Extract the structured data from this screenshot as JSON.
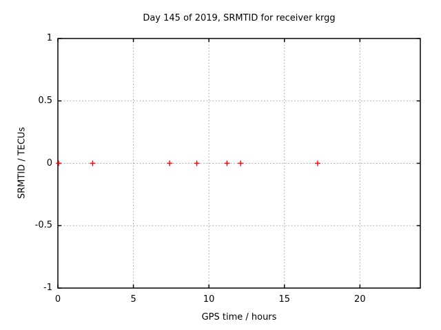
{
  "chart_data": {
    "type": "scatter",
    "title": "Day 145 of 2019, SRMTID for receiver krgg",
    "xlabel": "GPS time / hours",
    "ylabel": "SRMTID / TECUs",
    "xlim": [
      0,
      24
    ],
    "ylim": [
      -1,
      1
    ],
    "xticks": [
      0,
      5,
      10,
      15,
      20
    ],
    "xtick_labels": [
      "0",
      "5",
      "10",
      "15",
      "20"
    ],
    "yticks": [
      -1,
      -0.5,
      0,
      0.5,
      1
    ],
    "ytick_labels": [
      "-1",
      "-0.5",
      "0",
      "0.5",
      "1"
    ],
    "grid": true,
    "legend_position": "none",
    "marker": "plus",
    "series": [
      {
        "name": "SRMTID",
        "points": [
          {
            "x": 0.05,
            "y": 0
          },
          {
            "x": 2.3,
            "y": 0
          },
          {
            "x": 7.4,
            "y": 0
          },
          {
            "x": 9.2,
            "y": 0
          },
          {
            "x": 11.2,
            "y": 0
          },
          {
            "x": 12.1,
            "y": 0
          },
          {
            "x": 17.2,
            "y": 0
          }
        ]
      }
    ],
    "colors": {
      "marker": "#ff0000",
      "grid": "#a0a0a0",
      "axis": "#000000",
      "text": "#000000",
      "background": "#ffffff"
    }
  }
}
